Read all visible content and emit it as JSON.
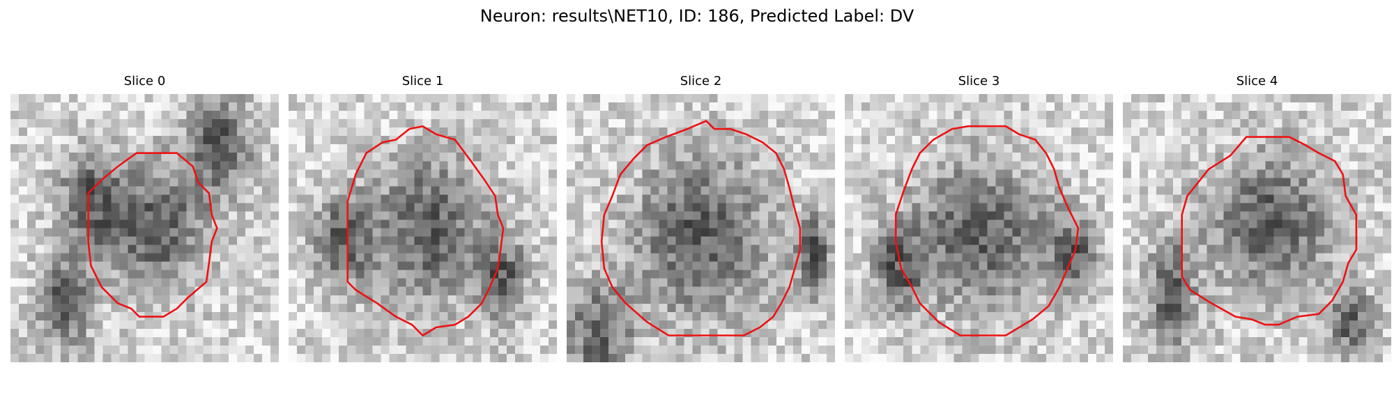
{
  "figure": {
    "title": "Neuron: results\\NET10, ID: 186, Predicted Label: DV"
  },
  "contour_color": "#ee1111",
  "panels": [
    {
      "title": "Slice 0",
      "seed": 11,
      "blobs": [
        [
          0.55,
          0.5,
          0.22,
          0.28
        ],
        [
          0.3,
          0.4,
          0.14,
          0.22
        ],
        [
          0.78,
          0.18,
          0.14,
          0.22
        ],
        [
          0.2,
          0.78,
          0.12,
          0.2
        ]
      ],
      "contour": [
        [
          0.47,
          0.22
        ],
        [
          0.62,
          0.22
        ],
        [
          0.68,
          0.27
        ],
        [
          0.7,
          0.33
        ],
        [
          0.74,
          0.37
        ],
        [
          0.75,
          0.45
        ],
        [
          0.77,
          0.5
        ],
        [
          0.75,
          0.55
        ],
        [
          0.74,
          0.63
        ],
        [
          0.73,
          0.7
        ],
        [
          0.66,
          0.76
        ],
        [
          0.62,
          0.8
        ],
        [
          0.57,
          0.83
        ],
        [
          0.48,
          0.83
        ],
        [
          0.45,
          0.8
        ],
        [
          0.4,
          0.78
        ],
        [
          0.34,
          0.72
        ],
        [
          0.3,
          0.64
        ],
        [
          0.29,
          0.55
        ],
        [
          0.29,
          0.45
        ],
        [
          0.29,
          0.37
        ],
        [
          0.34,
          0.32
        ],
        [
          0.4,
          0.27
        ]
      ]
    },
    {
      "title": "Slice 1",
      "seed": 23,
      "blobs": [
        [
          0.52,
          0.5,
          0.26,
          0.32
        ],
        [
          0.2,
          0.55,
          0.12,
          0.2
        ],
        [
          0.8,
          0.7,
          0.1,
          0.18
        ]
      ],
      "contour": [
        [
          0.5,
          0.12
        ],
        [
          0.55,
          0.15
        ],
        [
          0.62,
          0.17
        ],
        [
          0.68,
          0.25
        ],
        [
          0.73,
          0.32
        ],
        [
          0.77,
          0.38
        ],
        [
          0.78,
          0.45
        ],
        [
          0.8,
          0.5
        ],
        [
          0.79,
          0.58
        ],
        [
          0.78,
          0.65
        ],
        [
          0.75,
          0.72
        ],
        [
          0.72,
          0.78
        ],
        [
          0.67,
          0.83
        ],
        [
          0.62,
          0.86
        ],
        [
          0.55,
          0.87
        ],
        [
          0.5,
          0.9
        ],
        [
          0.46,
          0.86
        ],
        [
          0.4,
          0.83
        ],
        [
          0.33,
          0.78
        ],
        [
          0.25,
          0.73
        ],
        [
          0.22,
          0.7
        ],
        [
          0.22,
          0.6
        ],
        [
          0.22,
          0.5
        ],
        [
          0.22,
          0.4
        ],
        [
          0.25,
          0.3
        ],
        [
          0.29,
          0.22
        ],
        [
          0.35,
          0.18
        ],
        [
          0.4,
          0.17
        ],
        [
          0.45,
          0.13
        ]
      ]
    },
    {
      "title": "Slice 2",
      "seed": 37,
      "blobs": [
        [
          0.5,
          0.53,
          0.3,
          0.36
        ],
        [
          0.12,
          0.9,
          0.14,
          0.22
        ],
        [
          0.92,
          0.6,
          0.08,
          0.18
        ]
      ],
      "contour": [
        [
          0.52,
          0.1
        ],
        [
          0.55,
          0.13
        ],
        [
          0.61,
          0.13
        ],
        [
          0.67,
          0.15
        ],
        [
          0.73,
          0.18
        ],
        [
          0.78,
          0.22
        ],
        [
          0.81,
          0.28
        ],
        [
          0.83,
          0.35
        ],
        [
          0.85,
          0.43
        ],
        [
          0.87,
          0.5
        ],
        [
          0.87,
          0.58
        ],
        [
          0.85,
          0.65
        ],
        [
          0.83,
          0.72
        ],
        [
          0.8,
          0.78
        ],
        [
          0.77,
          0.83
        ],
        [
          0.72,
          0.87
        ],
        [
          0.66,
          0.9
        ],
        [
          0.6,
          0.9
        ],
        [
          0.53,
          0.9
        ],
        [
          0.47,
          0.9
        ],
        [
          0.38,
          0.9
        ],
        [
          0.3,
          0.85
        ],
        [
          0.22,
          0.78
        ],
        [
          0.17,
          0.72
        ],
        [
          0.14,
          0.65
        ],
        [
          0.13,
          0.55
        ],
        [
          0.14,
          0.45
        ],
        [
          0.17,
          0.38
        ],
        [
          0.2,
          0.3
        ],
        [
          0.25,
          0.24
        ],
        [
          0.3,
          0.19
        ],
        [
          0.37,
          0.16
        ],
        [
          0.45,
          0.13
        ]
      ]
    },
    {
      "title": "Slice 3",
      "seed": 53,
      "blobs": [
        [
          0.5,
          0.52,
          0.3,
          0.32
        ],
        [
          0.2,
          0.65,
          0.1,
          0.18
        ],
        [
          0.85,
          0.6,
          0.1,
          0.16
        ]
      ],
      "contour": [
        [
          0.4,
          0.13
        ],
        [
          0.46,
          0.12
        ],
        [
          0.6,
          0.12
        ],
        [
          0.65,
          0.15
        ],
        [
          0.71,
          0.17
        ],
        [
          0.75,
          0.22
        ],
        [
          0.78,
          0.28
        ],
        [
          0.8,
          0.35
        ],
        [
          0.83,
          0.42
        ],
        [
          0.87,
          0.5
        ],
        [
          0.86,
          0.58
        ],
        [
          0.83,
          0.65
        ],
        [
          0.8,
          0.72
        ],
        [
          0.76,
          0.79
        ],
        [
          0.7,
          0.84
        ],
        [
          0.6,
          0.9
        ],
        [
          0.43,
          0.9
        ],
        [
          0.35,
          0.85
        ],
        [
          0.28,
          0.78
        ],
        [
          0.25,
          0.72
        ],
        [
          0.21,
          0.65
        ],
        [
          0.19,
          0.55
        ],
        [
          0.19,
          0.45
        ],
        [
          0.22,
          0.36
        ],
        [
          0.25,
          0.28
        ],
        [
          0.28,
          0.22
        ],
        [
          0.33,
          0.17
        ]
      ]
    },
    {
      "title": "Slice 4",
      "seed": 71,
      "blobs": [
        [
          0.55,
          0.48,
          0.28,
          0.3
        ],
        [
          0.18,
          0.75,
          0.1,
          0.24
        ],
        [
          0.85,
          0.85,
          0.1,
          0.14
        ]
      ],
      "contour": [
        [
          0.4,
          0.23
        ],
        [
          0.46,
          0.16
        ],
        [
          0.62,
          0.16
        ],
        [
          0.68,
          0.19
        ],
        [
          0.73,
          0.22
        ],
        [
          0.79,
          0.25
        ],
        [
          0.82,
          0.3
        ],
        [
          0.83,
          0.38
        ],
        [
          0.87,
          0.45
        ],
        [
          0.87,
          0.58
        ],
        [
          0.84,
          0.63
        ],
        [
          0.82,
          0.7
        ],
        [
          0.78,
          0.77
        ],
        [
          0.73,
          0.82
        ],
        [
          0.65,
          0.83
        ],
        [
          0.58,
          0.86
        ],
        [
          0.53,
          0.86
        ],
        [
          0.48,
          0.84
        ],
        [
          0.42,
          0.83
        ],
        [
          0.33,
          0.78
        ],
        [
          0.25,
          0.73
        ],
        [
          0.22,
          0.68
        ],
        [
          0.22,
          0.58
        ],
        [
          0.22,
          0.45
        ],
        [
          0.24,
          0.38
        ],
        [
          0.28,
          0.33
        ],
        [
          0.32,
          0.28
        ]
      ]
    }
  ]
}
